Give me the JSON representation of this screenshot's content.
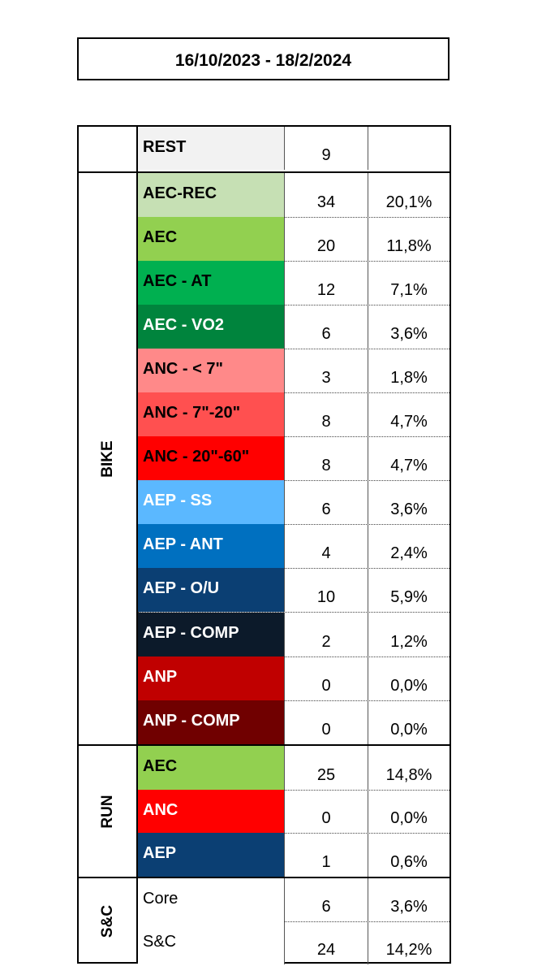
{
  "header": {
    "date_range": "16/10/2023 - 18/2/2024"
  },
  "groups": {
    "rest": {
      "label": "",
      "rows": [
        {
          "name": "REST",
          "count": "9",
          "pct": "",
          "bg": "#f2f2f2",
          "fg": "#000000"
        }
      ]
    },
    "bike": {
      "label": "BIKE",
      "rows": [
        {
          "name": "AEC-REC",
          "count": "34",
          "pct": "20,1%",
          "bg": "#c6e0b4",
          "fg": "#000000"
        },
        {
          "name": "AEC",
          "count": "20",
          "pct": "11,8%",
          "bg": "#92d050",
          "fg": "#000000"
        },
        {
          "name": "AEC - AT",
          "count": "12",
          "pct": "7,1%",
          "bg": "#00b050",
          "fg": "#000000"
        },
        {
          "name": "AEC - VO2",
          "count": "6",
          "pct": "3,6%",
          "bg": "#00843d",
          "fg": "#ffffff"
        },
        {
          "name": "ANC - < 7\"",
          "count": "3",
          "pct": "1,8%",
          "bg": "#ff8989",
          "fg": "#000000"
        },
        {
          "name": "ANC - 7\"-20\"",
          "count": "8",
          "pct": "4,7%",
          "bg": "#ff5050",
          "fg": "#000000"
        },
        {
          "name": "ANC - 20\"-60\"",
          "count": "8",
          "pct": "4,7%",
          "bg": "#ff0000",
          "fg": "#000000"
        },
        {
          "name": "AEP - SS",
          "count": "6",
          "pct": "3,6%",
          "bg": "#5bb8ff",
          "fg": "#ffffff"
        },
        {
          "name": "AEP - ANT",
          "count": "4",
          "pct": "2,4%",
          "bg": "#0070c0",
          "fg": "#ffffff"
        },
        {
          "name": "AEP - O/U",
          "count": "10",
          "pct": "5,9%",
          "bg": "#0b3f73",
          "fg": "#ffffff"
        },
        {
          "name": "AEP - COMP",
          "count": "2",
          "pct": "1,2%",
          "bg": "#0c1a2a",
          "fg": "#ffffff"
        },
        {
          "name": "ANP",
          "count": "0",
          "pct": "0,0%",
          "bg": "#c00000",
          "fg": "#ffffff"
        },
        {
          "name": "ANP - COMP",
          "count": "0",
          "pct": "0,0%",
          "bg": "#700000",
          "fg": "#ffffff"
        }
      ]
    },
    "run": {
      "label": "RUN",
      "rows": [
        {
          "name": "AEC",
          "count": "25",
          "pct": "14,8%",
          "bg": "#92d050",
          "fg": "#000000"
        },
        {
          "name": "ANC",
          "count": "0",
          "pct": "0,0%",
          "bg": "#ff0000",
          "fg": "#ffffff"
        },
        {
          "name": "AEP",
          "count": "1",
          "pct": "0,6%",
          "bg": "#0b3f73",
          "fg": "#ffffff"
        }
      ]
    },
    "sc": {
      "label": "S&C",
      "rows": [
        {
          "name": "Core",
          "count": "6",
          "pct": "3,6%",
          "bg": "#ffffff",
          "fg": "#000000"
        },
        {
          "name": "S&C",
          "count": "24",
          "pct": "14,2%",
          "bg": "#ffffff",
          "fg": "#000000"
        }
      ]
    }
  }
}
